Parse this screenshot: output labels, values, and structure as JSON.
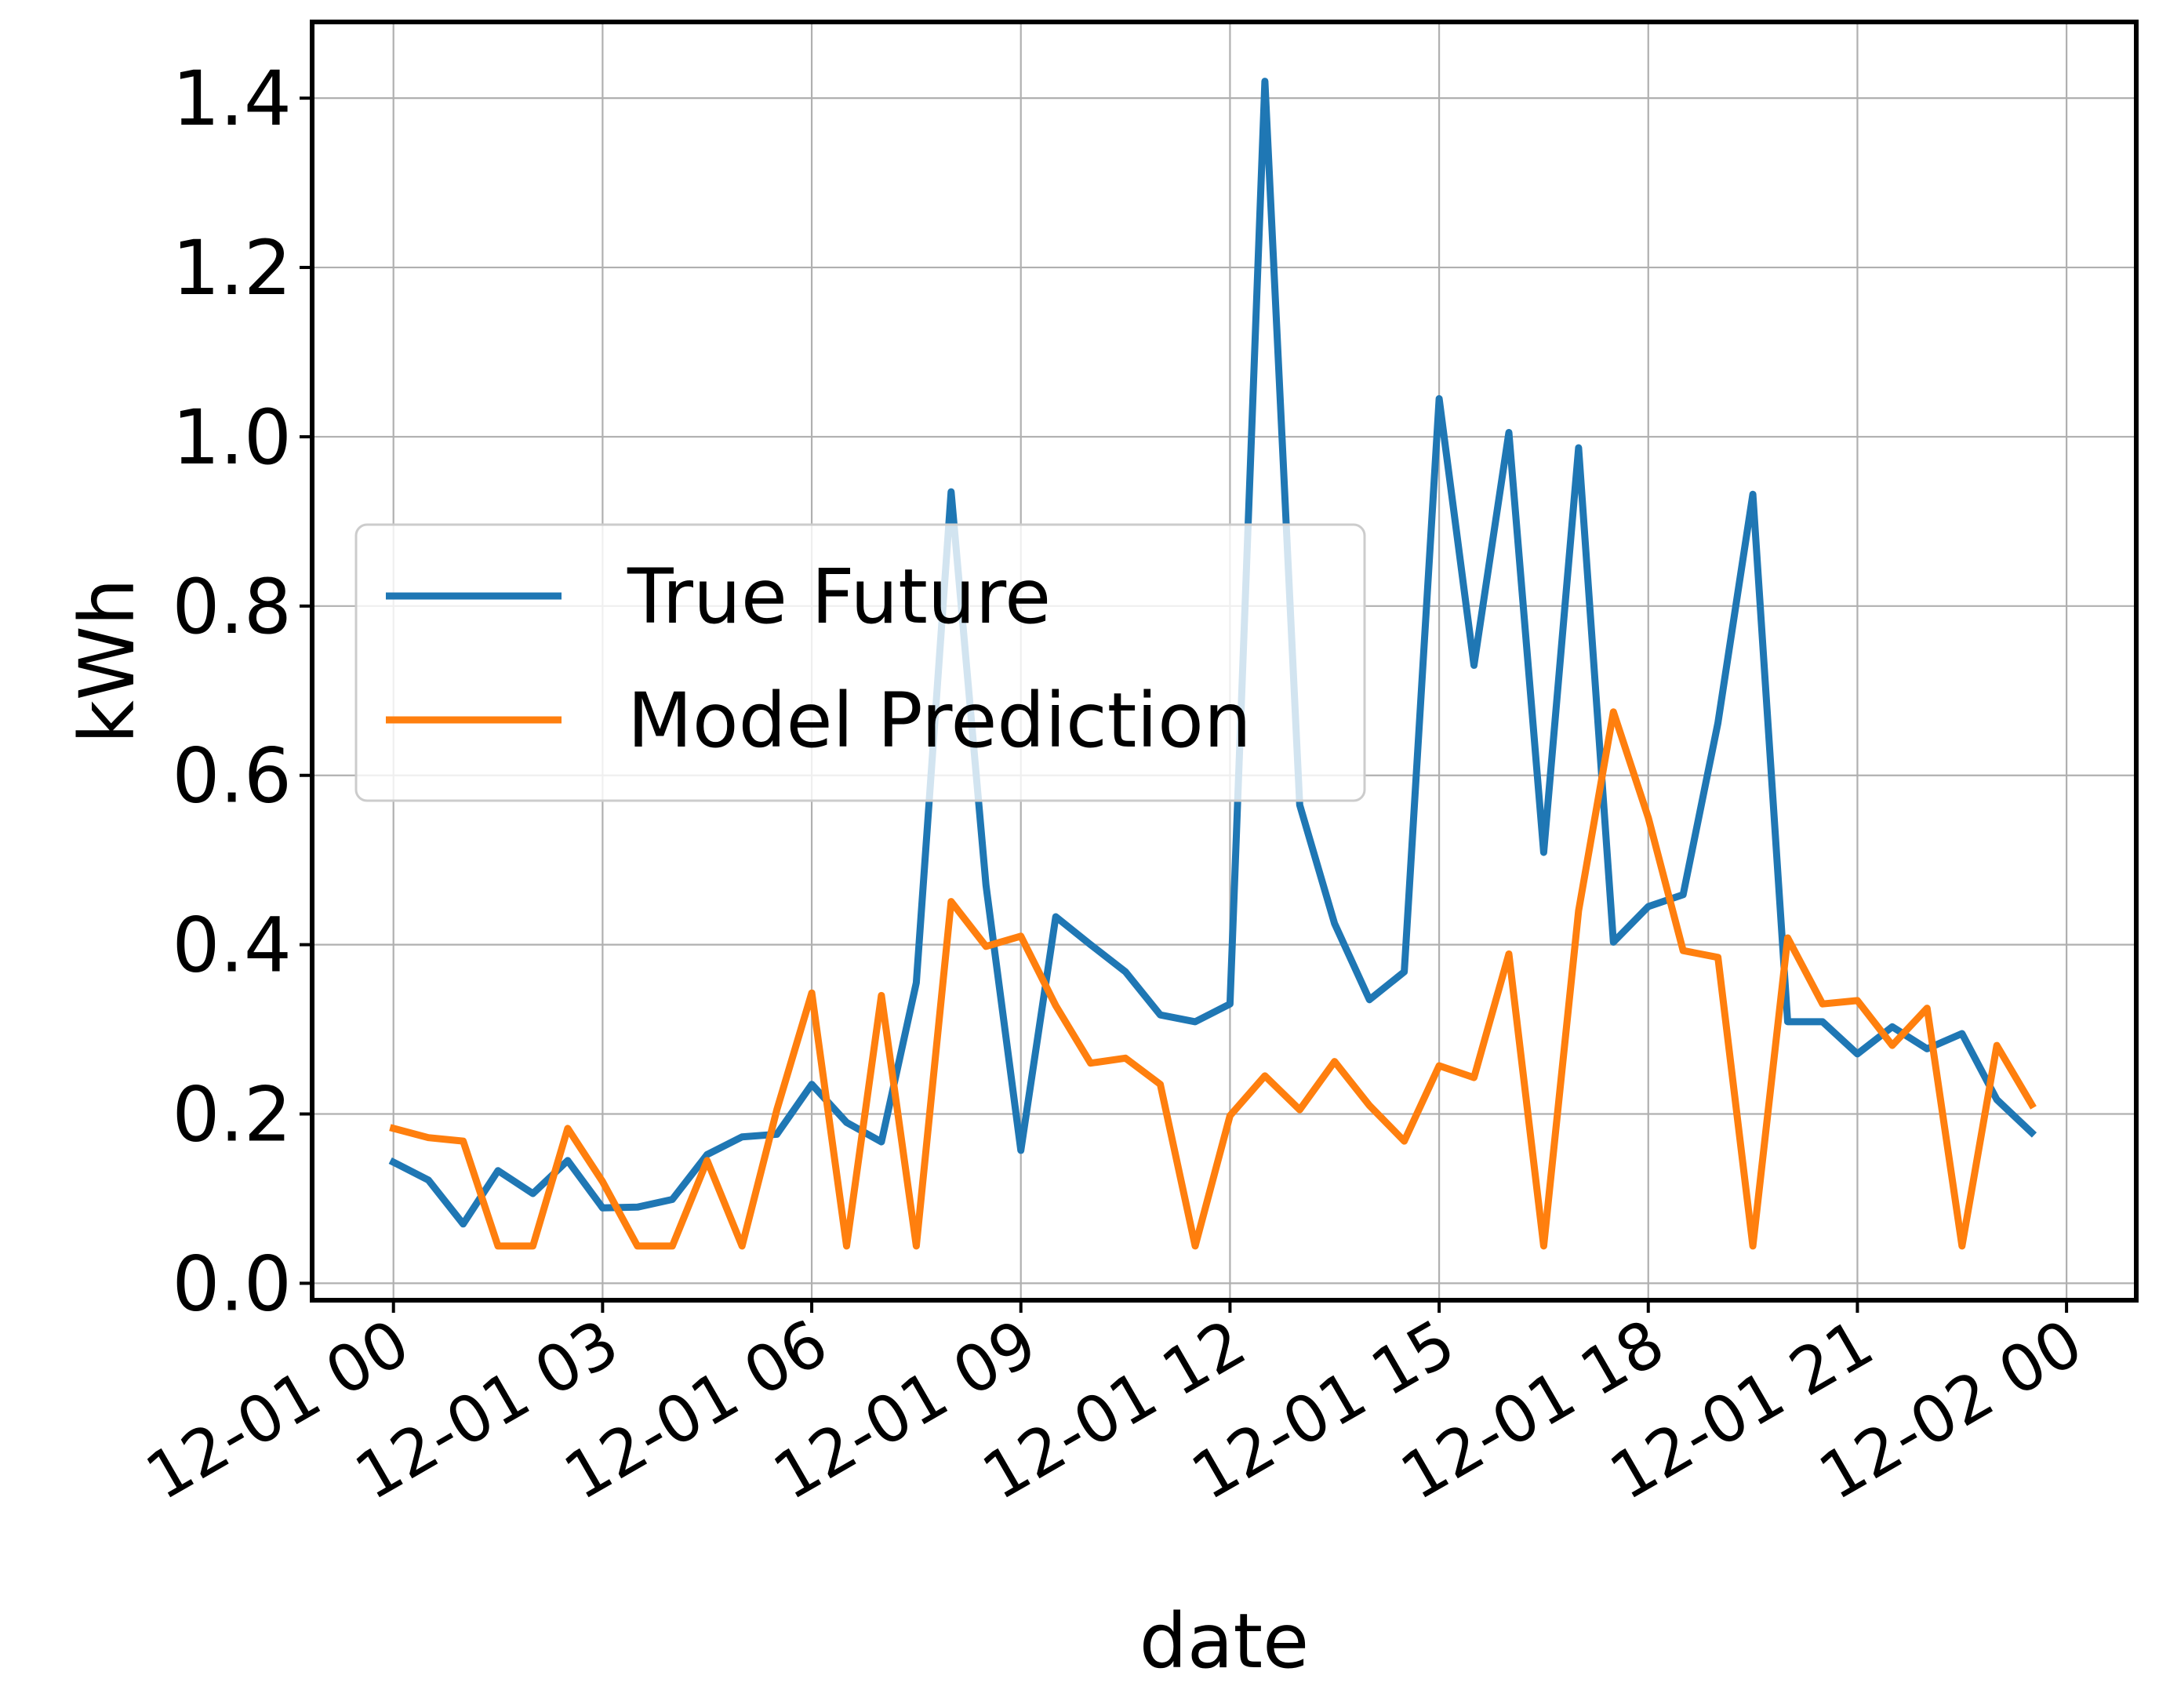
{
  "chart_data": {
    "type": "line",
    "xlabel": "date",
    "ylabel": "kWh",
    "title": "",
    "grid": true,
    "legend_placement": "center-left",
    "ylim": [
      -0.02,
      1.49
    ],
    "xlim": [
      "2023-11-30T22:50",
      "2023-12-02T01:00"
    ],
    "yticks": [
      0.0,
      0.2,
      0.4,
      0.6,
      0.8,
      1.0,
      1.2,
      1.4
    ],
    "ytick_labels": [
      "0.0",
      "0.2",
      "0.4",
      "0.6",
      "0.8",
      "1.0",
      "1.2",
      "1.4"
    ],
    "xticks": [
      "2023-12-01T00:00",
      "2023-12-01T03:00",
      "2023-12-01T06:00",
      "2023-12-01T09:00",
      "2023-12-01T12:00",
      "2023-12-01T15:00",
      "2023-12-01T18:00",
      "2023-12-01T21:00",
      "2023-12-02T00:00"
    ],
    "xtick_labels": [
      "12-01 00",
      "12-01 03",
      "12-01 06",
      "12-01 09",
      "12-01 12",
      "12-01 15",
      "12-01 18",
      "12-01 21",
      "12-02 00"
    ],
    "x": [
      "2023-12-01T00:00",
      "2023-12-01T00:30",
      "2023-12-01T01:00",
      "2023-12-01T01:30",
      "2023-12-01T02:00",
      "2023-12-01T02:30",
      "2023-12-01T03:00",
      "2023-12-01T03:30",
      "2023-12-01T04:00",
      "2023-12-01T04:30",
      "2023-12-01T05:00",
      "2023-12-01T05:30",
      "2023-12-01T06:00",
      "2023-12-01T06:30",
      "2023-12-01T07:00",
      "2023-12-01T07:30",
      "2023-12-01T08:00",
      "2023-12-01T08:30",
      "2023-12-01T09:00",
      "2023-12-01T09:30",
      "2023-12-01T10:00",
      "2023-12-01T10:30",
      "2023-12-01T11:00",
      "2023-12-01T11:30",
      "2023-12-01T12:00",
      "2023-12-01T12:30",
      "2023-12-01T13:00",
      "2023-12-01T13:30",
      "2023-12-01T14:00",
      "2023-12-01T14:30",
      "2023-12-01T15:00",
      "2023-12-01T15:30",
      "2023-12-01T16:00",
      "2023-12-01T16:30",
      "2023-12-01T17:00",
      "2023-12-01T17:30",
      "2023-12-01T18:00",
      "2023-12-01T18:30",
      "2023-12-01T19:00",
      "2023-12-01T19:30",
      "2023-12-01T20:00",
      "2023-12-01T20:30",
      "2023-12-01T21:00",
      "2023-12-01T21:30",
      "2023-12-01T22:00",
      "2023-12-01T22:30",
      "2023-12-01T23:00",
      "2023-12-01T23:30"
    ],
    "series": [
      {
        "name": "True Future",
        "color": "#1f77b4",
        "values": [
          0.143,
          0.122,
          0.07,
          0.133,
          0.106,
          0.145,
          0.089,
          0.09,
          0.099,
          0.152,
          0.173,
          0.176,
          0.235,
          0.19,
          0.167,
          0.355,
          0.935,
          0.47,
          0.157,
          0.433,
          0.4,
          0.368,
          0.317,
          0.309,
          0.33,
          1.42,
          0.565,
          0.425,
          0.335,
          0.368,
          1.045,
          0.73,
          1.005,
          0.509,
          0.987,
          0.403,
          0.445,
          0.459,
          0.662,
          0.932,
          0.309,
          0.309,
          0.271,
          0.303,
          0.277,
          0.295,
          0.217,
          0.178
        ]
      },
      {
        "name": "Model Prediction",
        "color": "#ff7f0e",
        "values": [
          0.183,
          0.172,
          0.168,
          0.044,
          0.044,
          0.183,
          0.12,
          0.044,
          0.044,
          0.145,
          0.044,
          0.205,
          0.343,
          0.044,
          0.34,
          0.044,
          0.451,
          0.398,
          0.41,
          0.328,
          0.26,
          0.266,
          0.235,
          0.044,
          0.198,
          0.245,
          0.205,
          0.262,
          0.21,
          0.168,
          0.257,
          0.243,
          0.389,
          0.044,
          0.44,
          0.675,
          0.55,
          0.393,
          0.385,
          0.044,
          0.408,
          0.33,
          0.334,
          0.281,
          0.325,
          0.044,
          0.281,
          0.211
        ]
      }
    ]
  }
}
